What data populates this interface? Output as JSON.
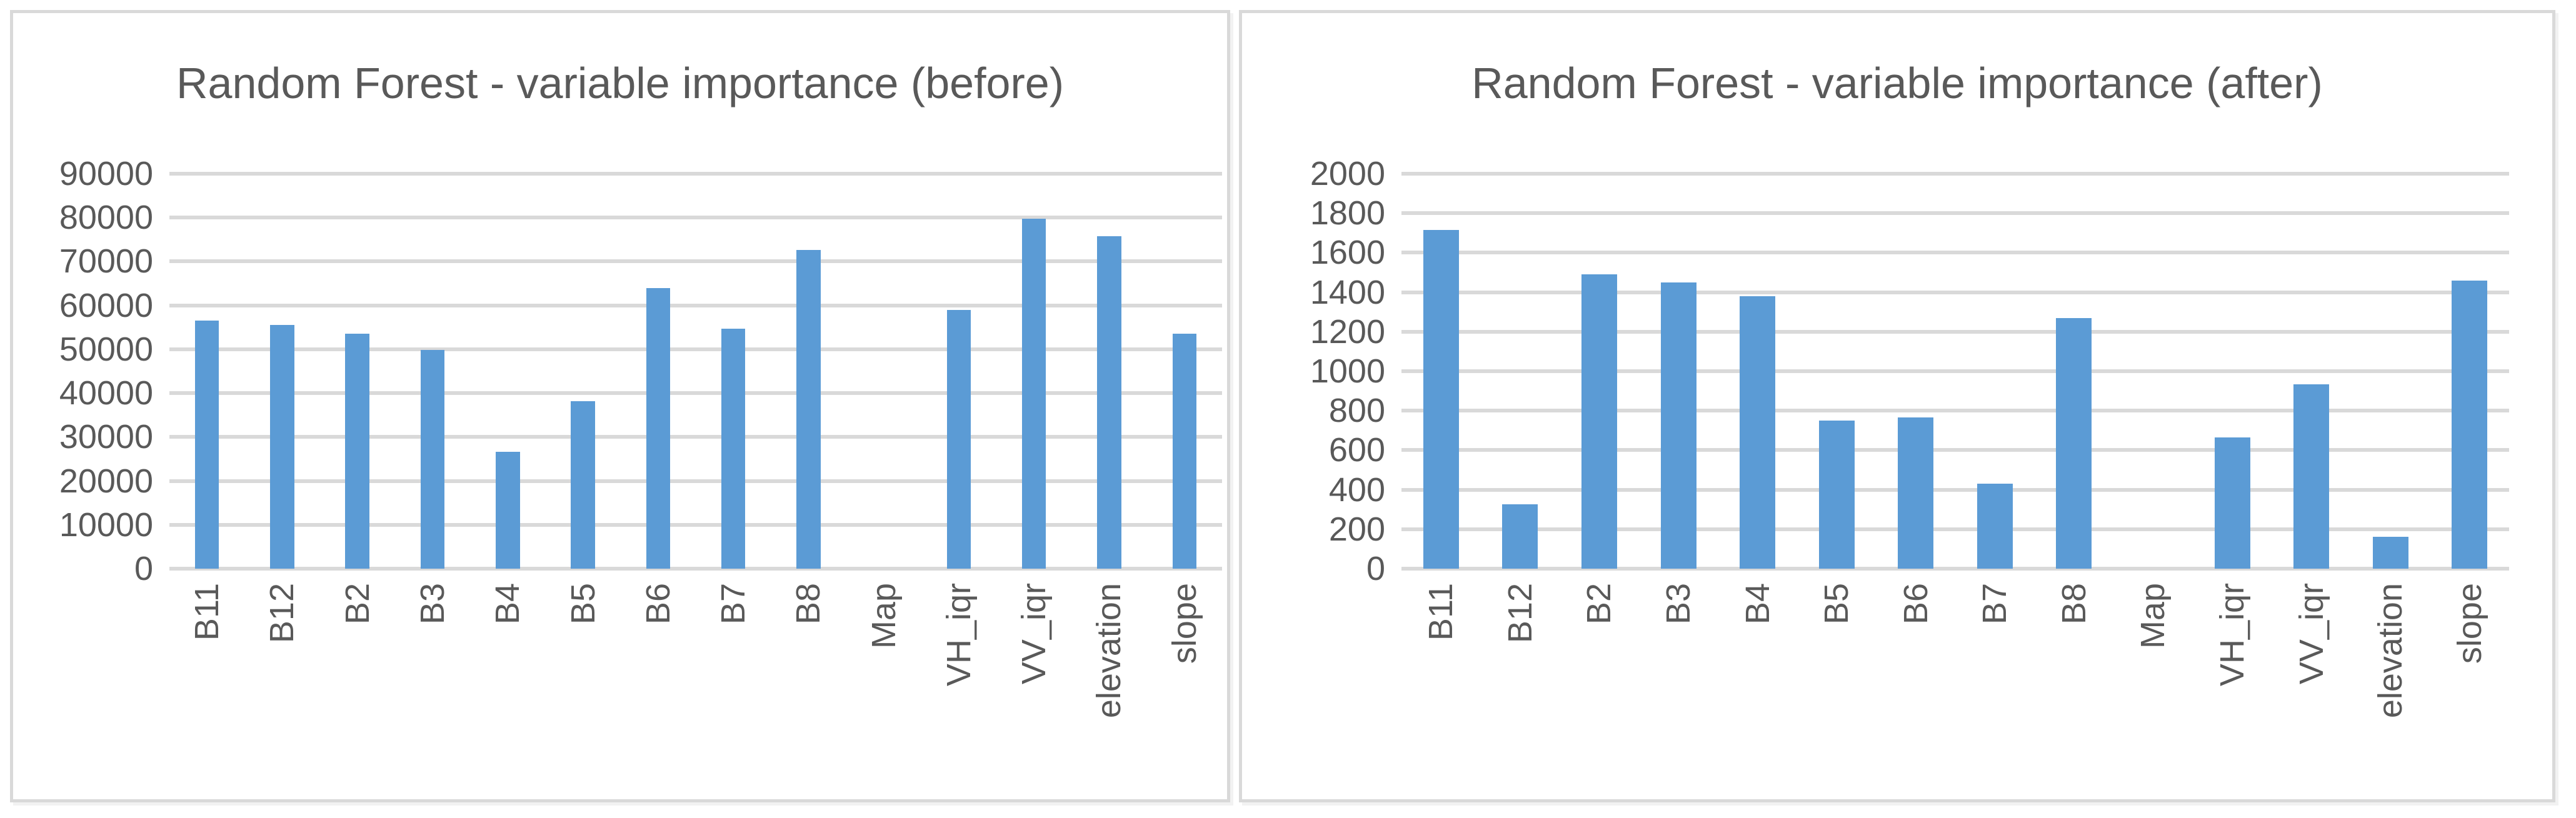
{
  "styles": {
    "bar_color": "#5B9BD5",
    "gridline_color": "#D9D9D9",
    "text_color": "#595959",
    "panel_border_color": "#D9D9D9",
    "background_color": "#FFFFFF"
  },
  "chart_data": [
    {
      "type": "bar",
      "title": "Random Forest - variable importance (before)",
      "categories": [
        "B11",
        "B12",
        "B2",
        "B3",
        "B4",
        "B5",
        "B6",
        "B7",
        "B8",
        "Map",
        "VH_iqr",
        "VV_iqr",
        "elevation",
        "slope"
      ],
      "values": [
        56500,
        55500,
        53600,
        49900,
        26600,
        38200,
        64000,
        54700,
        72700,
        0,
        59000,
        79700,
        75700,
        53600
      ],
      "xlabel": "",
      "ylabel": "",
      "ylim": [
        0,
        90000
      ],
      "ystep": 10000,
      "yticks": [
        0,
        10000,
        20000,
        30000,
        40000,
        50000,
        60000,
        70000,
        80000,
        90000
      ],
      "grid": true,
      "legend": "none",
      "bar_color": "#5B9BD5",
      "category_label_rotation": 90
    },
    {
      "type": "bar",
      "title": "Random Forest - variable importance (after)",
      "categories": [
        "B11",
        "B12",
        "B2",
        "B3",
        "B4",
        "B5",
        "B6",
        "B7",
        "B8",
        "Map",
        "VH_iqr",
        "VV_iqr",
        "elevation",
        "slope"
      ],
      "values": [
        1715,
        325,
        1490,
        1450,
        1380,
        750,
        765,
        430,
        1270,
        0,
        665,
        935,
        160,
        1460
      ],
      "xlabel": "",
      "ylabel": "",
      "ylim": [
        0,
        2000
      ],
      "ystep": 200,
      "yticks": [
        0,
        200,
        400,
        600,
        800,
        1000,
        1200,
        1400,
        1600,
        1800,
        2000
      ],
      "grid": true,
      "legend": "none",
      "bar_color": "#5B9BD5",
      "category_label_rotation": 90
    }
  ]
}
